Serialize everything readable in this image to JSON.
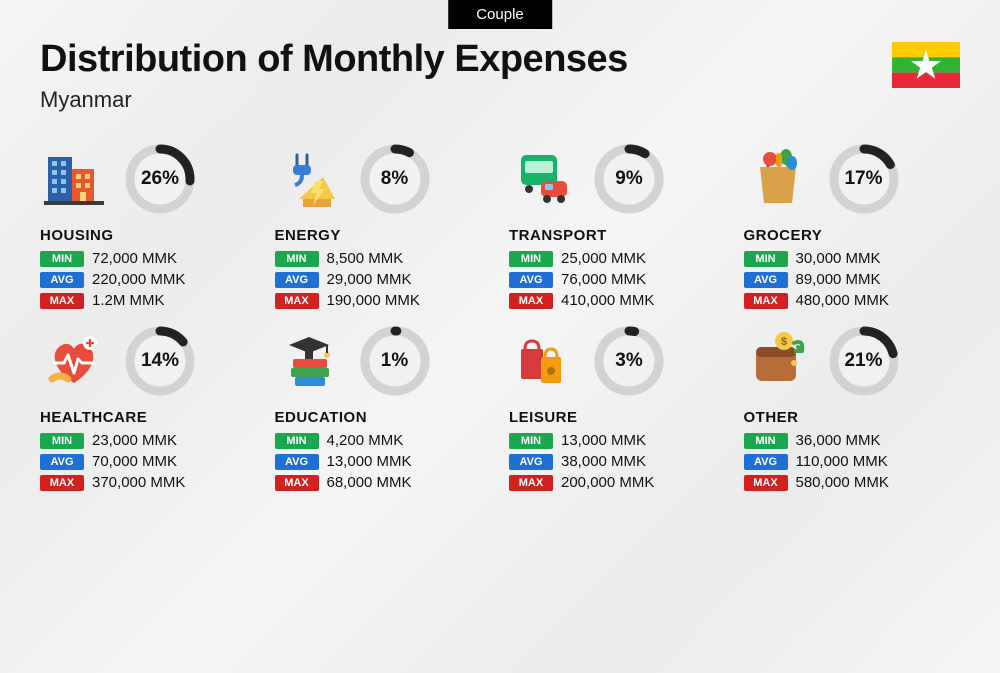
{
  "tab_label": "Couple",
  "title": "Distribution of Monthly Expenses",
  "subtitle": "Myanmar",
  "flag": {
    "stripe1": "#fecb00",
    "stripe2": "#34b233",
    "stripe3": "#ea2839",
    "star": "#ffffff"
  },
  "badge_labels": {
    "min": "MIN",
    "avg": "AVG",
    "max": "MAX"
  },
  "badge_colors": {
    "min": "#1aa84f",
    "avg": "#1f6fd4",
    "max": "#d32121"
  },
  "ring": {
    "track_color": "#d3d3d3",
    "progress_color": "#222222",
    "bg_color": "#f1f1f1",
    "stroke_width": 9
  },
  "categories": [
    {
      "name": "HOUSING",
      "pct": 26,
      "min": "72,000 MMK",
      "avg": "220,000 MMK",
      "max": "1.2M MMK",
      "icon": "housing"
    },
    {
      "name": "ENERGY",
      "pct": 8,
      "min": "8,500 MMK",
      "avg": "29,000 MMK",
      "max": "190,000 MMK",
      "icon": "energy"
    },
    {
      "name": "TRANSPORT",
      "pct": 9,
      "min": "25,000 MMK",
      "avg": "76,000 MMK",
      "max": "410,000 MMK",
      "icon": "transport"
    },
    {
      "name": "GROCERY",
      "pct": 17,
      "min": "30,000 MMK",
      "avg": "89,000 MMK",
      "max": "480,000 MMK",
      "icon": "grocery"
    },
    {
      "name": "HEALTHCARE",
      "pct": 14,
      "min": "23,000 MMK",
      "avg": "70,000 MMK",
      "max": "370,000 MMK",
      "icon": "healthcare"
    },
    {
      "name": "EDUCATION",
      "pct": 1,
      "min": "4,200 MMK",
      "avg": "13,000 MMK",
      "max": "68,000 MMK",
      "icon": "education"
    },
    {
      "name": "LEISURE",
      "pct": 3,
      "min": "13,000 MMK",
      "avg": "38,000 MMK",
      "max": "200,000 MMK",
      "icon": "leisure"
    },
    {
      "name": "OTHER",
      "pct": 21,
      "min": "36,000 MMK",
      "avg": "110,000 MMK",
      "max": "580,000 MMK",
      "icon": "other"
    }
  ]
}
